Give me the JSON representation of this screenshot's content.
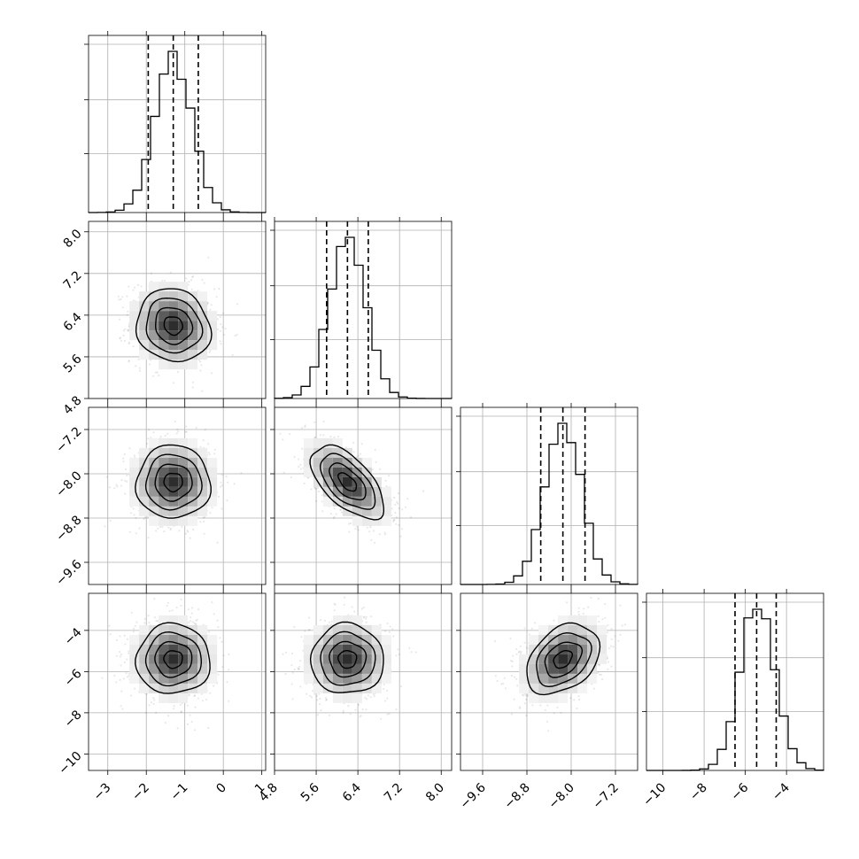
{
  "chart_data": {
    "type": "corner",
    "title": "",
    "grid": true,
    "colors": {
      "mark": "#000000",
      "grid": "#b0b0b0",
      "scatter": "#808080"
    },
    "params": [
      {
        "name": "",
        "range": [
          -3.5,
          1.1
        ],
        "ticks": [
          -3,
          -2,
          -1,
          0,
          1
        ],
        "tick_labels": [
          "−3",
          "−2",
          "−1",
          "0",
          "1"
        ],
        "mean": -1.3,
        "sd": 0.48,
        "quantiles": [
          -1.95,
          -1.3,
          -0.65
        ]
      },
      {
        "name": "",
        "range": [
          4.8,
          8.2
        ],
        "ticks": [
          4.8,
          5.6,
          6.4,
          7.2,
          8.0
        ],
        "tick_labels": [
          "4.8",
          "5.6",
          "6.4",
          "7.2",
          "8.0"
        ],
        "mean": 6.2,
        "sd": 0.35,
        "quantiles": [
          5.8,
          6.2,
          6.6
        ]
      },
      {
        "name": "",
        "range": [
          -10.0,
          -6.8
        ],
        "ticks": [
          -9.6,
          -8.8,
          -8.0,
          -7.2
        ],
        "tick_labels": [
          "−9.6",
          "−8.8",
          "−8.0",
          "−7.2"
        ],
        "mean": -8.15,
        "sd": 0.33,
        "quantiles": [
          -8.55,
          -8.15,
          -7.75
        ]
      },
      {
        "name": "",
        "range": [
          -10.8,
          -2.2
        ],
        "ticks": [
          -10,
          -8,
          -6,
          -4
        ],
        "tick_labels": [
          "−10",
          "−8",
          "−6",
          "−4"
        ],
        "mean": -5.4,
        "sd": 0.85,
        "quantiles": [
          -6.5,
          -5.45,
          -4.5
        ]
      }
    ],
    "correlations": [
      {
        "pair": [
          1,
          0
        ],
        "rho": -0.1
      },
      {
        "pair": [
          2,
          0
        ],
        "rho": 0.0
      },
      {
        "pair": [
          2,
          1
        ],
        "rho": -0.6
      },
      {
        "pair": [
          3,
          0
        ],
        "rho": 0.0
      },
      {
        "pair": [
          3,
          1
        ],
        "rho": 0.0
      },
      {
        "pair": [
          3,
          2
        ],
        "rho": 0.35
      }
    ],
    "contour_levels_sigma": [
      0.5,
      1.0,
      1.5,
      2.0
    ]
  }
}
